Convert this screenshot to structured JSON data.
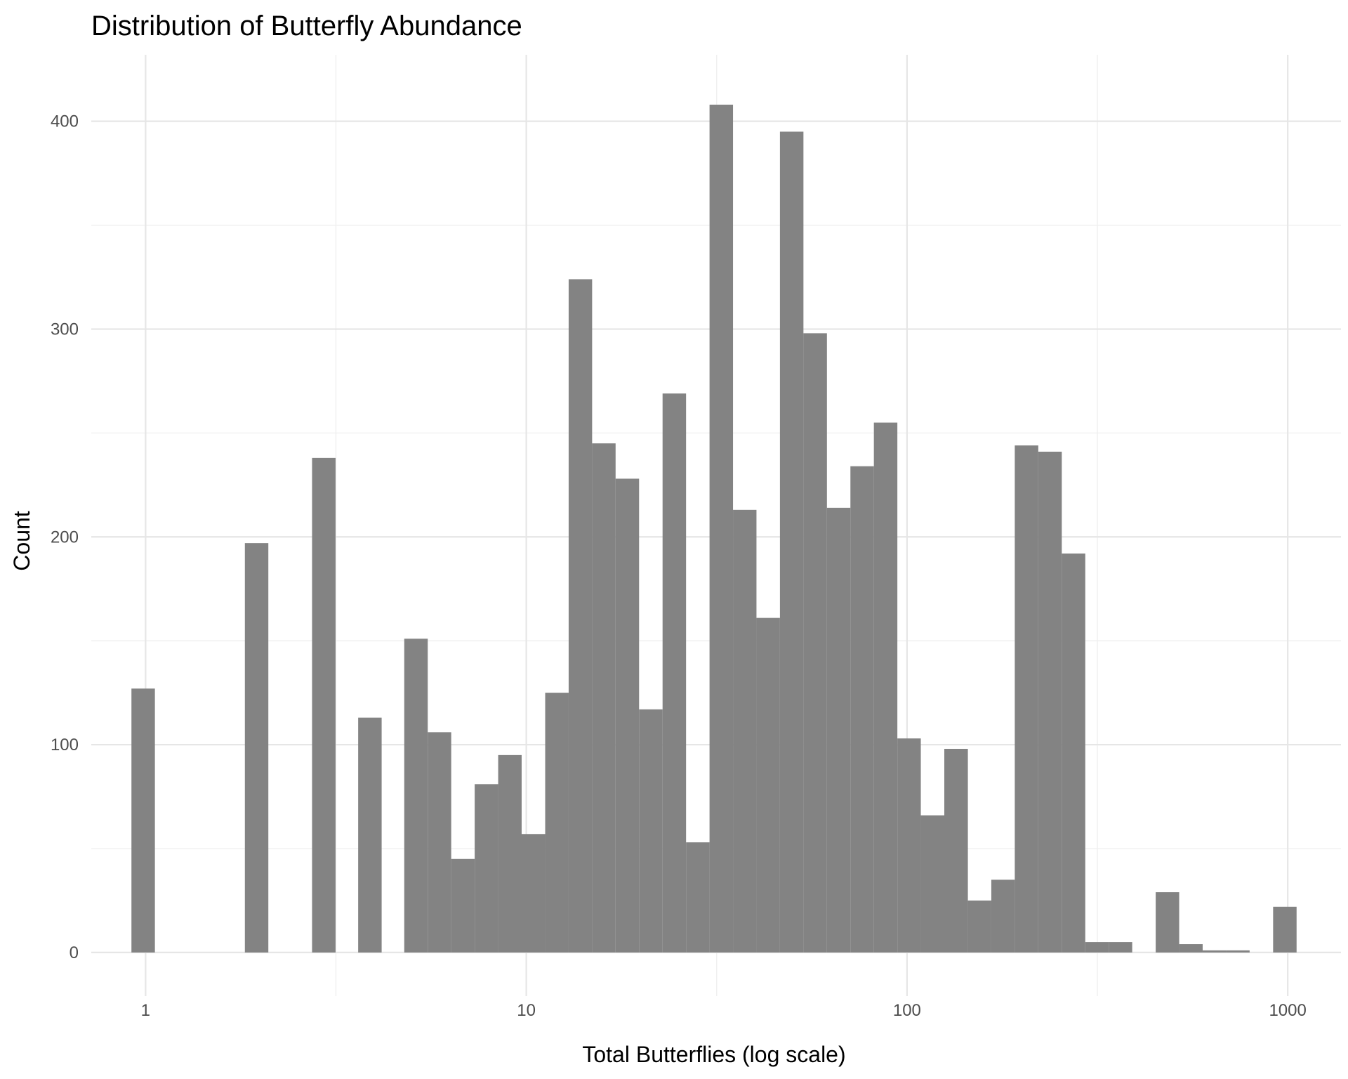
{
  "chart_data": {
    "type": "bar",
    "title": "Distribution of Butterfly Abundance",
    "xlabel": "Total Butterflies (log scale)",
    "ylabel": "Count",
    "x_scale": "log10",
    "xlim": [
      0.72,
      1380
    ],
    "ylim": [
      -21,
      432
    ],
    "x_ticks": [
      1,
      10,
      100,
      1000
    ],
    "x_tick_labels": [
      "1",
      "10",
      "100",
      "1000"
    ],
    "y_ticks": [
      0,
      100,
      200,
      300,
      400
    ],
    "y_tick_labels": [
      "0",
      "100",
      "200",
      "300",
      "400"
    ],
    "grid": true,
    "legend": "none",
    "bar_color": "#7f7f7f",
    "bins": [
      {
        "x0": 0.918,
        "x1": 1.058,
        "count": 127
      },
      {
        "x0": 1.823,
        "x1": 2.101,
        "count": 197
      },
      {
        "x0": 2.737,
        "x1": 3.155,
        "count": 238
      },
      {
        "x0": 3.617,
        "x1": 4.169,
        "count": 113
      },
      {
        "x0": 4.78,
        "x1": 5.51,
        "count": 151
      },
      {
        "x0": 5.51,
        "x1": 6.35,
        "count": 106
      },
      {
        "x0": 6.35,
        "x1": 7.319,
        "count": 45
      },
      {
        "x0": 7.319,
        "x1": 8.436,
        "count": 81
      },
      {
        "x0": 8.436,
        "x1": 9.723,
        "count": 95
      },
      {
        "x0": 9.723,
        "x1": 11.21,
        "count": 57
      },
      {
        "x0": 11.21,
        "x1": 12.92,
        "count": 125
      },
      {
        "x0": 12.92,
        "x1": 14.89,
        "count": 324
      },
      {
        "x0": 14.89,
        "x1": 17.16,
        "count": 245
      },
      {
        "x0": 17.16,
        "x1": 19.78,
        "count": 228
      },
      {
        "x0": 19.78,
        "x1": 22.8,
        "count": 117
      },
      {
        "x0": 22.8,
        "x1": 26.28,
        "count": 269
      },
      {
        "x0": 26.28,
        "x1": 30.29,
        "count": 53
      },
      {
        "x0": 30.29,
        "x1": 34.91,
        "count": 408
      },
      {
        "x0": 34.91,
        "x1": 40.23,
        "count": 213
      },
      {
        "x0": 40.23,
        "x1": 46.37,
        "count": 161
      },
      {
        "x0": 46.37,
        "x1": 53.45,
        "count": 395
      },
      {
        "x0": 53.45,
        "x1": 61.61,
        "count": 298
      },
      {
        "x0": 61.61,
        "x1": 71.01,
        "count": 214
      },
      {
        "x0": 71.01,
        "x1": 81.84,
        "count": 234
      },
      {
        "x0": 81.84,
        "x1": 94.33,
        "count": 255
      },
      {
        "x0": 94.33,
        "x1": 108.7,
        "count": 103
      },
      {
        "x0": 108.7,
        "x1": 125.3,
        "count": 66
      },
      {
        "x0": 125.3,
        "x1": 144.5,
        "count": 98
      },
      {
        "x0": 144.5,
        "x1": 166.5,
        "count": 25
      },
      {
        "x0": 166.5,
        "x1": 191.9,
        "count": 35
      },
      {
        "x0": 191.9,
        "x1": 221.2,
        "count": 244
      },
      {
        "x0": 221.2,
        "x1": 255.0,
        "count": 241
      },
      {
        "x0": 255.0,
        "x1": 293.9,
        "count": 192
      },
      {
        "x0": 293.9,
        "x1": 338.7,
        "count": 5
      },
      {
        "x0": 338.7,
        "x1": 390.4,
        "count": 5
      },
      {
        "x0": 450.0,
        "x1": 518.7,
        "count": 29
      },
      {
        "x0": 518.7,
        "x1": 597.8,
        "count": 4
      },
      {
        "x0": 597.8,
        "x1": 689.1,
        "count": 1
      },
      {
        "x0": 689.1,
        "x1": 794.2,
        "count": 1
      },
      {
        "x0": 915.4,
        "x1": 1055.0,
        "count": 22
      }
    ]
  }
}
